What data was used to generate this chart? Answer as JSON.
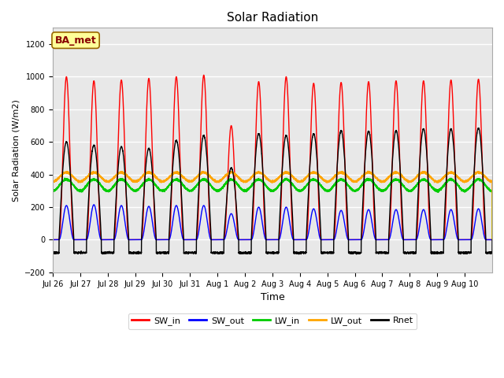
{
  "title": "Solar Radiation",
  "xlabel": "Time",
  "ylabel": "Solar Radiation (W/m2)",
  "ylim": [
    -200,
    1300
  ],
  "yticks": [
    -200,
    0,
    200,
    400,
    600,
    800,
    1000,
    1200
  ],
  "num_days": 16,
  "day_labels": [
    "Jul 26",
    "Jul 27",
    "Jul 28",
    "Jul 29",
    "Jul 30",
    "Jul 31",
    "Aug 1",
    "Aug 2",
    "Aug 3",
    "Aug 4",
    "Aug 5",
    "Aug 6",
    "Aug 7",
    "Aug 8",
    "Aug 9",
    "Aug 10"
  ],
  "colors": {
    "SW_in": "#ff0000",
    "SW_out": "#0000ff",
    "LW_in": "#00cc00",
    "LW_out": "#ffa500",
    "Rnet": "#000000"
  },
  "annotation": "BA_met",
  "annotation_box_color": "#ffff99",
  "annotation_box_edge": "#996600",
  "plot_bg_color": "#e8e8e8",
  "fig_bg_color": "#ffffff",
  "grid_color": "#ffffff",
  "linewidth": 1.0,
  "SW_in_peaks": [
    1000,
    975,
    980,
    990,
    1000,
    1010,
    700,
    970,
    1000,
    960,
    965,
    970,
    975,
    975,
    980,
    985
  ],
  "SW_out_peaks": [
    210,
    215,
    210,
    205,
    210,
    210,
    160,
    200,
    200,
    190,
    180,
    185,
    185,
    185,
    185,
    190
  ],
  "LW_in_base": 335,
  "LW_in_amplitude": 35,
  "LW_out_base": 385,
  "LW_out_amplitude": 28,
  "Rnet_peaks": [
    600,
    580,
    570,
    560,
    610,
    640,
    440,
    650,
    640,
    650,
    670,
    665,
    670,
    680,
    680,
    685
  ],
  "Rnet_night": -80,
  "sunrise": 0.23,
  "sunset": 0.77
}
